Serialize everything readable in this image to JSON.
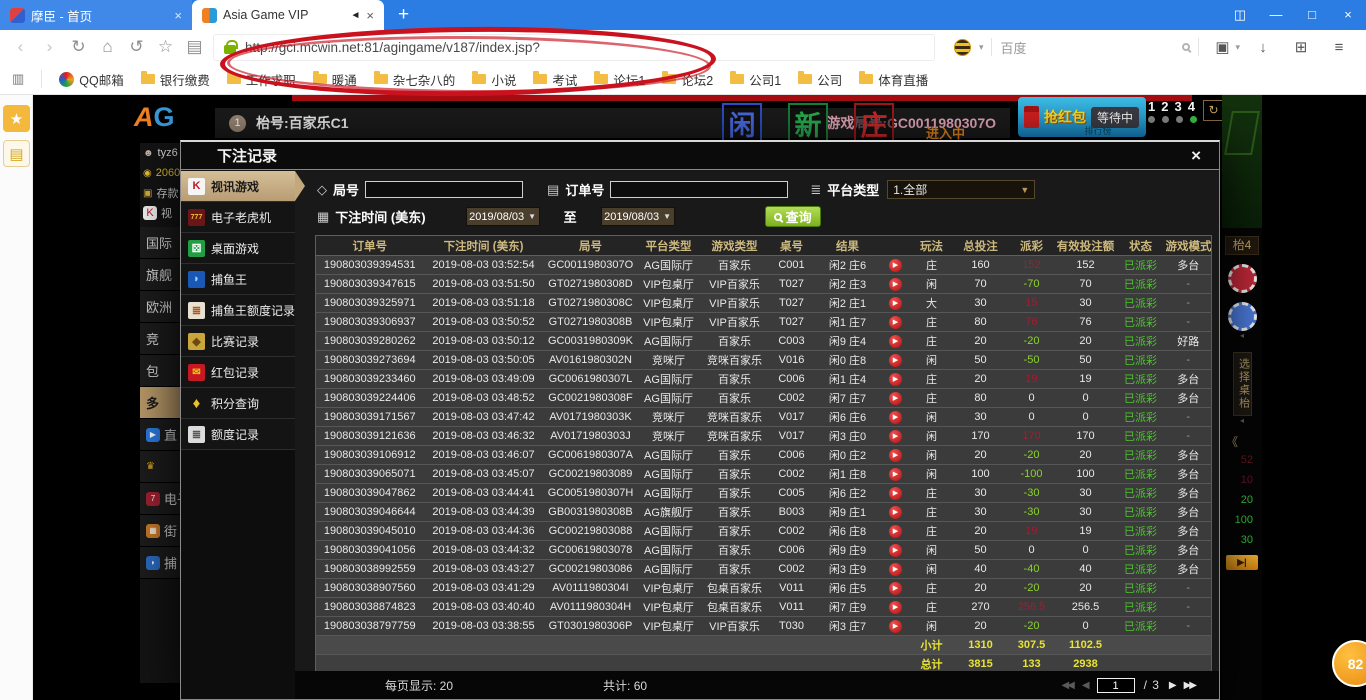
{
  "icons": {
    "close": "×",
    "plus": "+",
    "back": "‹",
    "forward": "›",
    "refresh": "↻",
    "home": "⌂",
    "undo": "↺",
    "favorite": "☆",
    "notes": "▤",
    "caret_small": "▾",
    "screenshot": "▣",
    "download": "↓",
    "apps": "⊞",
    "menu": "≡",
    "window_layout": "◫",
    "window_min": "—",
    "window_max": "□",
    "window_close": "×",
    "tab_audio": "◄",
    "bookmark_panel": "▥",
    "caret_down": "▼",
    "play": "▶",
    "star_solid": "★",
    "note_pad": "▤",
    "first_page": "◀◀",
    "prev_page": "◀",
    "next_page": "▶",
    "last_page": "▶▶",
    "double_left": "《",
    "play_bar": "▶|",
    "tag": "◇",
    "clipboard": "▤",
    "list": "≣",
    "calendar": "▦",
    "card_glyph": "K",
    "slot_glyph": "777",
    "dice_glyph": "⚄",
    "fish_glyph": "◗",
    "doc_glyph": "≣",
    "ticket_glyph": "◆",
    "envelope_glyph": "✉",
    "gem_glyph": "♦",
    "user_glyph": "☻",
    "coin_glyph": "◉",
    "deposit_glyph": "▣",
    "trophy_glyph": "♛",
    "arcade_glyph": "▦",
    "seven_glyph": "7"
  },
  "browser": {
    "tab1": {
      "title": "摩臣 - 首页"
    },
    "tab2": {
      "title": "Asia Game VIP"
    },
    "url": "http://gci.mcwin.net:81/agingame/v187/index.jsp?",
    "search_engine_text": "百度",
    "bookmarks": [
      {
        "label": "QQ邮箱",
        "icon": "qq-icon"
      },
      {
        "label": "银行缴费",
        "icon": "folder-icon"
      },
      {
        "label": "工作求职",
        "icon": "folder-icon"
      },
      {
        "label": "暖通",
        "icon": "folder-icon"
      },
      {
        "label": "杂七杂八的",
        "icon": "folder-icon"
      },
      {
        "label": "小说",
        "icon": "folder-icon"
      },
      {
        "label": "考试",
        "icon": "folder-icon"
      },
      {
        "label": "论坛1",
        "icon": "folder-icon"
      },
      {
        "label": "论坛2",
        "icon": "folder-icon"
      },
      {
        "label": "公司1",
        "icon": "folder-icon"
      },
      {
        "label": "公司",
        "icon": "folder-icon"
      },
      {
        "label": "体育直播",
        "icon": "folder-icon"
      }
    ]
  },
  "game_page": {
    "logo_a": "A",
    "logo_g": "G",
    "table_badge": "1",
    "table_label": "枱号:百家乐C1",
    "round_label": "游戏局号:GC0011980307O",
    "markers": [
      "闲",
      "新",
      "庄"
    ],
    "entering_text": "进入中",
    "red_packet": {
      "title": "抢红包",
      "status": "等待中",
      "sub": "排行榜"
    },
    "indicator_numbers": [
      "1",
      "2",
      "3",
      "4"
    ],
    "left_panel": {
      "user": "tyz6",
      "balance": "2060",
      "deposit": "存款",
      "video": "视",
      "menu": [
        {
          "label": "国际",
          "icon": null,
          "active": false
        },
        {
          "label": "旗舰",
          "icon": null,
          "active": false
        },
        {
          "label": "欧洲",
          "icon": null,
          "active": false
        },
        {
          "label": "竞",
          "icon": null,
          "active": false
        },
        {
          "label": "包",
          "icon": null,
          "active": false
        },
        {
          "label": "多",
          "icon": null,
          "active": true
        },
        {
          "label": "直",
          "icon": "play-circle-icon",
          "active": false
        },
        {
          "label": "",
          "icon": "trophy-icon",
          "active": false
        },
        {
          "label": "电子",
          "icon": "slot-icon",
          "active": false
        },
        {
          "label": "街",
          "icon": "arcade-icon",
          "active": false
        },
        {
          "label": "捕",
          "icon": "fish-icon",
          "active": false
        }
      ]
    },
    "right_panel": {
      "table_tag": "枱4",
      "choose_table": "选择桌枱",
      "dim_numbers": [
        "52",
        "10"
      ],
      "green_numbers": [
        "20",
        "100",
        "30"
      ],
      "badge": "82"
    }
  },
  "modal": {
    "title": "下注记录",
    "menu": [
      {
        "label": "视讯游戏",
        "icon": "cards-icon",
        "active": true
      },
      {
        "label": "电子老虎机",
        "icon": "slot-icon",
        "active": false
      },
      {
        "label": "桌面游戏",
        "icon": "dice-icon",
        "active": false
      },
      {
        "label": "捕鱼王",
        "icon": "fish-icon",
        "active": false
      },
      {
        "label": "捕鱼王额度记录",
        "icon": "doc-icon",
        "active": false
      },
      {
        "label": "比赛记录",
        "icon": "ticket-icon",
        "active": false
      },
      {
        "label": "红包记录",
        "icon": "red-envelope-icon",
        "active": false
      },
      {
        "label": "积分查询",
        "icon": "gem-icon",
        "active": false
      },
      {
        "label": "额度记录",
        "icon": "doc2-icon",
        "active": false
      }
    ],
    "filters": {
      "round_label": "局号",
      "order_label": "订单号",
      "platform_label": "平台类型",
      "platform_value": "1.全部",
      "time_label": "下注时间 (美东)",
      "date_from": "2019/08/03",
      "to_label": "至",
      "date_to": "2019/08/03",
      "search_label": "查询"
    },
    "table": {
      "headers": [
        "订单号",
        "下注时间 (美东)",
        "局号",
        "平台类型",
        "游戏类型",
        "桌号",
        "结果",
        "",
        "玩法",
        "总投注",
        "派彩",
        "有效投注额",
        "状态",
        "游戏模式"
      ],
      "rows": [
        {
          "order": "190803039394531",
          "time": "2019-08-03 03:52:54",
          "round": "GC0011980307O",
          "platform": "AG国际厅",
          "game": "百家乐",
          "table": "C001",
          "result": "闲2 庄6",
          "play": "庄",
          "bet": "160",
          "payout": "152",
          "payout_type": "win",
          "valid": "152",
          "status": "已派彩",
          "mode": "多台"
        },
        {
          "order": "190803039347615",
          "time": "2019-08-03 03:51:50",
          "round": "GT0271980308D",
          "platform": "VIP包桌厅",
          "game": "VIP百家乐",
          "table": "T027",
          "result": "闲2 庄3",
          "play": "闲",
          "bet": "70",
          "payout": "-70",
          "payout_type": "lose",
          "valid": "70",
          "status": "已派彩",
          "mode": "-"
        },
        {
          "order": "190803039325971",
          "time": "2019-08-03 03:51:18",
          "round": "GT0271980308C",
          "platform": "VIP包桌厅",
          "game": "VIP百家乐",
          "table": "T027",
          "result": "闲2 庄1",
          "play": "大",
          "bet": "30",
          "payout": "15",
          "payout_type": "win",
          "valid": "30",
          "status": "已派彩",
          "mode": "-"
        },
        {
          "order": "190803039306937",
          "time": "2019-08-03 03:50:52",
          "round": "GT0271980308B",
          "platform": "VIP包桌厅",
          "game": "VIP百家乐",
          "table": "T027",
          "result": "闲1 庄7",
          "play": "庄",
          "bet": "80",
          "payout": "76",
          "payout_type": "win",
          "valid": "76",
          "status": "已派彩",
          "mode": "-"
        },
        {
          "order": "190803039280262",
          "time": "2019-08-03 03:50:12",
          "round": "GC0031980309K",
          "platform": "AG国际厅",
          "game": "百家乐",
          "table": "C003",
          "result": "闲9 庄4",
          "play": "庄",
          "bet": "20",
          "payout": "-20",
          "payout_type": "lose",
          "valid": "20",
          "status": "已派彩",
          "mode": "好路"
        },
        {
          "order": "190803039273694",
          "time": "2019-08-03 03:50:05",
          "round": "AV0161980302N",
          "platform": "竞咪厅",
          "game": "竞咪百家乐",
          "table": "V016",
          "result": "闲0 庄8",
          "play": "闲",
          "bet": "50",
          "payout": "-50",
          "payout_type": "lose",
          "valid": "50",
          "status": "已派彩",
          "mode": "-"
        },
        {
          "order": "190803039233460",
          "time": "2019-08-03 03:49:09",
          "round": "GC0061980307L",
          "platform": "AG国际厅",
          "game": "百家乐",
          "table": "C006",
          "result": "闲1 庄4",
          "play": "庄",
          "bet": "20",
          "payout": "19",
          "payout_type": "win",
          "valid": "19",
          "status": "已派彩",
          "mode": "多台"
        },
        {
          "order": "190803039224406",
          "time": "2019-08-03 03:48:52",
          "round": "GC0021980308F",
          "platform": "AG国际厅",
          "game": "百家乐",
          "table": "C002",
          "result": "闲7 庄7",
          "play": "庄",
          "bet": "80",
          "payout": "0",
          "payout_type": "zero",
          "valid": "0",
          "status": "已派彩",
          "mode": "多台"
        },
        {
          "order": "190803039171567",
          "time": "2019-08-03 03:47:42",
          "round": "AV0171980303K",
          "platform": "竞咪厅",
          "game": "竞咪百家乐",
          "table": "V017",
          "result": "闲6 庄6",
          "play": "闲",
          "bet": "30",
          "payout": "0",
          "payout_type": "zero",
          "valid": "0",
          "status": "已派彩",
          "mode": "-"
        },
        {
          "order": "190803039121636",
          "time": "2019-08-03 03:46:32",
          "round": "AV0171980303J",
          "platform": "竞咪厅",
          "game": "竞咪百家乐",
          "table": "V017",
          "result": "闲3 庄0",
          "play": "闲",
          "bet": "170",
          "payout": "170",
          "payout_type": "win",
          "valid": "170",
          "status": "已派彩",
          "mode": "-"
        },
        {
          "order": "190803039106912",
          "time": "2019-08-03 03:46:07",
          "round": "GC0061980307A",
          "platform": "AG国际厅",
          "game": "百家乐",
          "table": "C006",
          "result": "闲0 庄2",
          "play": "闲",
          "bet": "20",
          "payout": "-20",
          "payout_type": "lose",
          "valid": "20",
          "status": "已派彩",
          "mode": "多台"
        },
        {
          "order": "190803039065071",
          "time": "2019-08-03 03:45:07",
          "round": "GC00219803089",
          "platform": "AG国际厅",
          "game": "百家乐",
          "table": "C002",
          "result": "闲1 庄8",
          "play": "闲",
          "bet": "100",
          "payout": "-100",
          "payout_type": "lose",
          "valid": "100",
          "status": "已派彩",
          "mode": "多台"
        },
        {
          "order": "190803039047862",
          "time": "2019-08-03 03:44:41",
          "round": "GC0051980307H",
          "platform": "AG国际厅",
          "game": "百家乐",
          "table": "C005",
          "result": "闲6 庄2",
          "play": "庄",
          "bet": "30",
          "payout": "-30",
          "payout_type": "lose",
          "valid": "30",
          "status": "已派彩",
          "mode": "多台"
        },
        {
          "order": "190803039046644",
          "time": "2019-08-03 03:44:39",
          "round": "GB0031980308B",
          "platform": "AG旗舰厅",
          "game": "百家乐",
          "table": "B003",
          "result": "闲9 庄1",
          "play": "庄",
          "bet": "30",
          "payout": "-30",
          "payout_type": "lose",
          "valid": "30",
          "status": "已派彩",
          "mode": "多台"
        },
        {
          "order": "190803039045010",
          "time": "2019-08-03 03:44:36",
          "round": "GC00219803088",
          "platform": "AG国际厅",
          "game": "百家乐",
          "table": "C002",
          "result": "闲6 庄8",
          "play": "庄",
          "bet": "20",
          "payout": "19",
          "payout_type": "win",
          "valid": "19",
          "status": "已派彩",
          "mode": "多台"
        },
        {
          "order": "190803039041056",
          "time": "2019-08-03 03:44:32",
          "round": "GC00619803078",
          "platform": "AG国际厅",
          "game": "百家乐",
          "table": "C006",
          "result": "闲9 庄9",
          "play": "闲",
          "bet": "50",
          "payout": "0",
          "payout_type": "zero",
          "valid": "0",
          "status": "已派彩",
          "mode": "多台"
        },
        {
          "order": "190803038992559",
          "time": "2019-08-03 03:43:27",
          "round": "GC00219803086",
          "platform": "AG国际厅",
          "game": "百家乐",
          "table": "C002",
          "result": "闲3 庄9",
          "play": "闲",
          "bet": "40",
          "payout": "-40",
          "payout_type": "lose",
          "valid": "40",
          "status": "已派彩",
          "mode": "多台"
        },
        {
          "order": "190803038907560",
          "time": "2019-08-03 03:41:29",
          "round": "AV0111980304I",
          "platform": "VIP包桌厅",
          "game": "包桌百家乐",
          "table": "V011",
          "result": "闲6 庄5",
          "play": "庄",
          "bet": "20",
          "payout": "-20",
          "payout_type": "lose",
          "valid": "20",
          "status": "已派彩",
          "mode": "-"
        },
        {
          "order": "190803038874823",
          "time": "2019-08-03 03:40:40",
          "round": "AV0111980304H",
          "platform": "VIP包桌厅",
          "game": "包桌百家乐",
          "table": "V011",
          "result": "闲7 庄9",
          "play": "庄",
          "bet": "270",
          "payout": "256.5",
          "payout_type": "win",
          "valid": "256.5",
          "status": "已派彩",
          "mode": "-"
        },
        {
          "order": "190803038797759",
          "time": "2019-08-03 03:38:55",
          "round": "GT0301980306P",
          "platform": "VIP包桌厅",
          "game": "VIP百家乐",
          "table": "T030",
          "result": "闲3 庄7",
          "play": "闲",
          "bet": "20",
          "payout": "-20",
          "payout_type": "lose",
          "valid": "0",
          "status": "已派彩",
          "mode": "-"
        }
      ],
      "subtotal": {
        "label": "小计",
        "bet": "1310",
        "payout": "307.5",
        "valid": "1102.5"
      },
      "total": {
        "label": "总计",
        "bet": "3815",
        "payout": "133",
        "valid": "2938"
      }
    },
    "footer": {
      "page_size": "每页显示: 20",
      "total_count": "共计: 60",
      "page_current": "1",
      "page_of": "/ 3"
    }
  }
}
